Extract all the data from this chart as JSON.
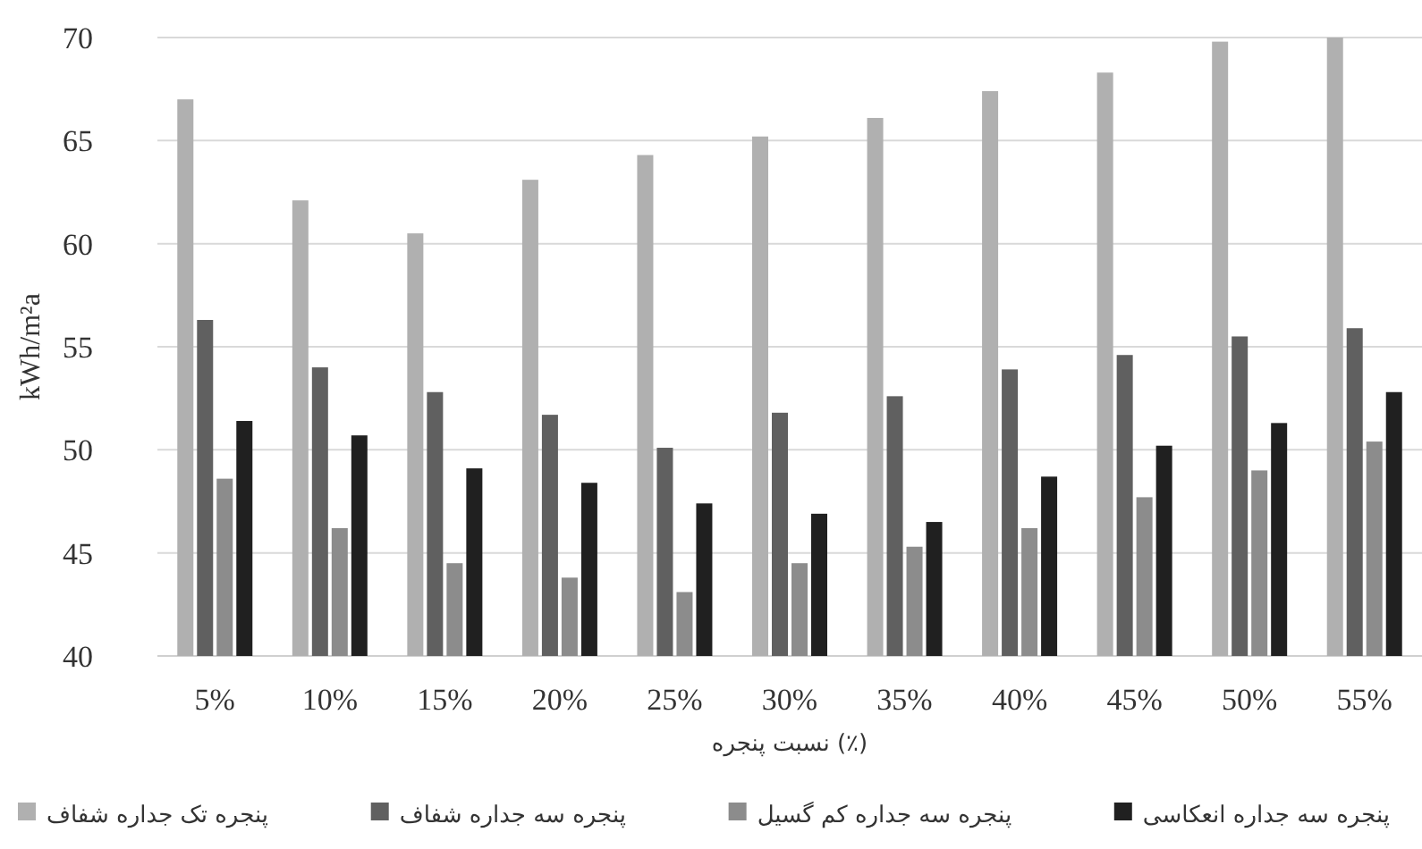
{
  "chart_data": {
    "type": "bar",
    "xlabel": "نسبت پنجره (٪)",
    "ylabel": "kWh/m²a",
    "categories": [
      "5%",
      "10%",
      "15%",
      "20%",
      "25%",
      "30%",
      "35%",
      "40%",
      "45%",
      "50%",
      "55%"
    ],
    "series": [
      {
        "name": "پنجره تک جداره شفاف",
        "color": "#b0b0b0",
        "values": [
          67.0,
          62.1,
          60.5,
          63.1,
          64.3,
          65.2,
          66.1,
          67.4,
          68.3,
          69.8,
          70.0
        ]
      },
      {
        "name": "پنجره سه جداره شفاف",
        "color": "#606060",
        "values": [
          56.3,
          54.0,
          52.8,
          51.7,
          50.1,
          51.8,
          52.6,
          53.9,
          54.6,
          55.5,
          55.9
        ]
      },
      {
        "name": "پنجره سه جداره کم گسیل",
        "color": "#8c8c8c",
        "values": [
          48.6,
          46.2,
          44.5,
          43.8,
          43.1,
          44.5,
          45.3,
          46.2,
          47.7,
          49.0,
          50.4
        ]
      },
      {
        "name": "پنجره سه جداره انعکاسی",
        "color": "#202020",
        "values": [
          51.4,
          50.7,
          49.1,
          48.4,
          47.4,
          46.9,
          46.5,
          48.7,
          50.2,
          51.3,
          52.8
        ]
      }
    ],
    "ylim": [
      40,
      70
    ],
    "yticks": [
      40,
      45,
      50,
      55,
      60,
      65,
      70
    ],
    "grid": "y",
    "legend": "bottom"
  }
}
